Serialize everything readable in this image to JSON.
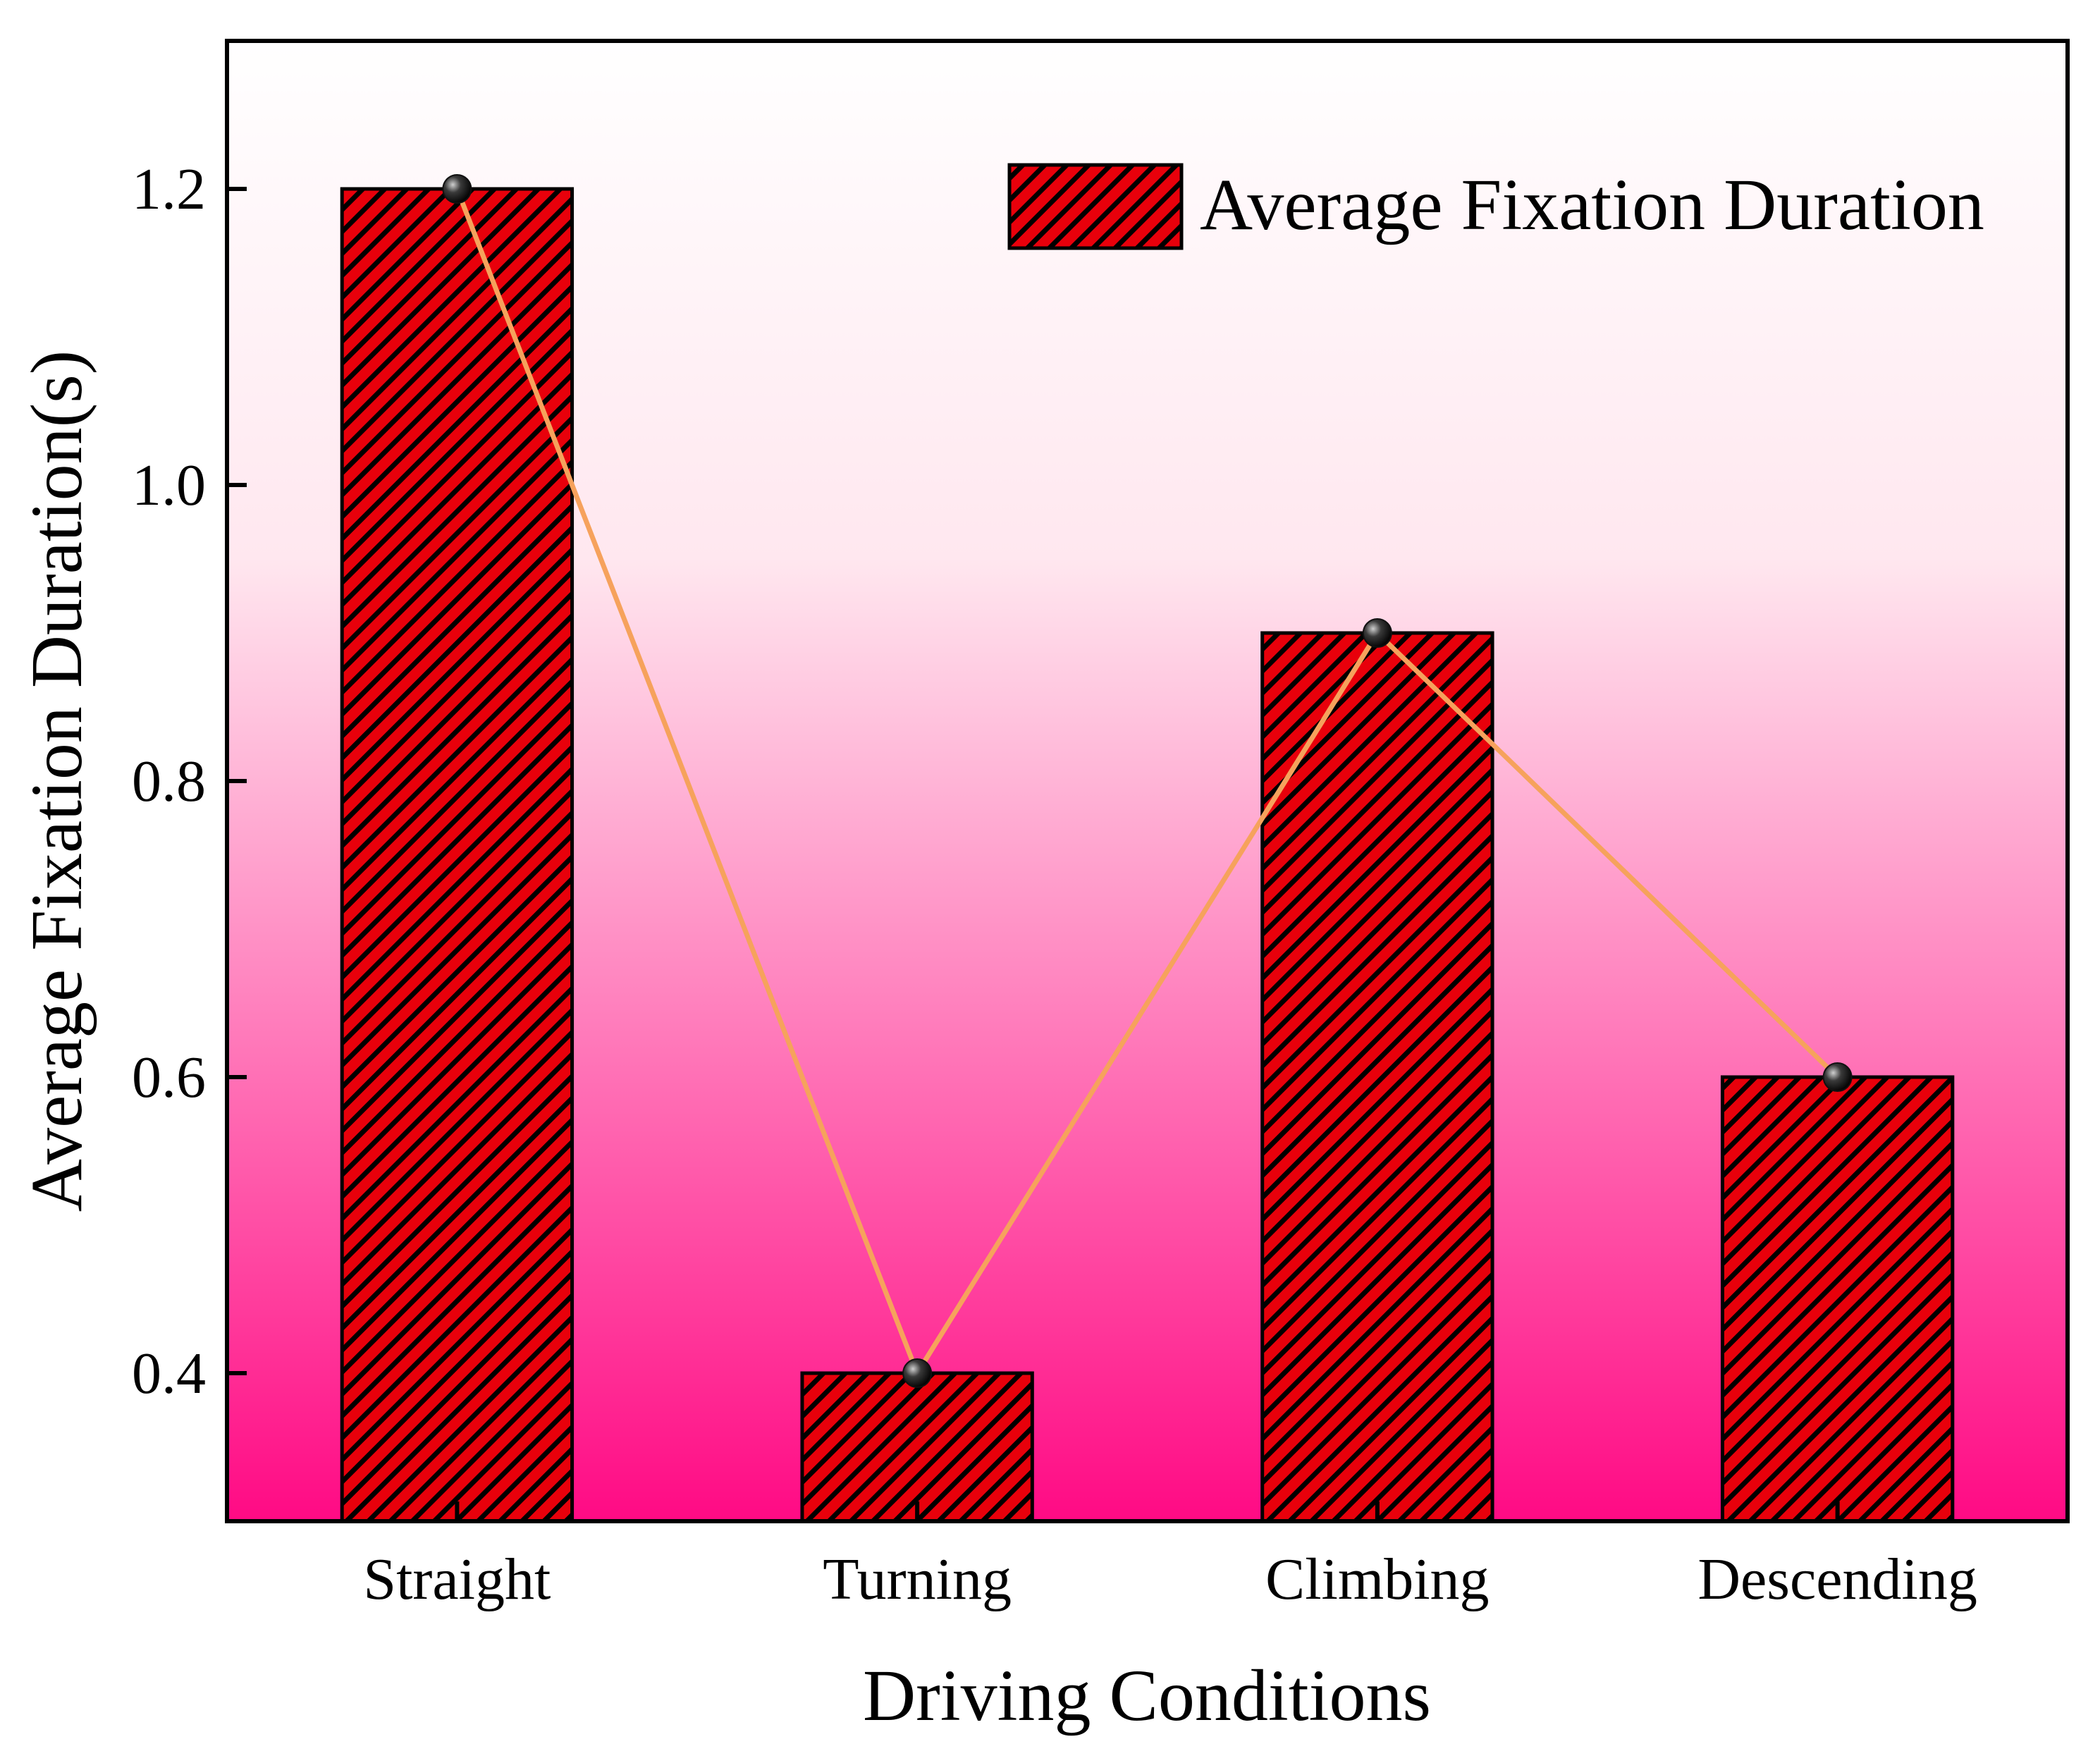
{
  "chart_data": {
    "type": "bar",
    "title": "",
    "categories": [
      "Straight",
      "Turning",
      "Climbing",
      "Descending"
    ],
    "series": [
      {
        "name": "Average Fixation Duration",
        "values": [
          1.2,
          0.4,
          0.9,
          0.6
        ]
      }
    ],
    "line_overlay": {
      "values": [
        1.2,
        0.4,
        0.9,
        0.6
      ]
    },
    "xlabel": "Driving Conditions",
    "ylabel": "Average Fixation Duration(s)",
    "ylim": [
      0.3,
      1.3
    ],
    "yticks": [
      "0.4",
      "0.6",
      "0.8",
      "1.0",
      "1.2"
    ],
    "legend": {
      "label": "Average Fixation Duration",
      "placement": "top-right"
    },
    "colors": {
      "bar_fill": "#e8000b",
      "hatch": "#000000",
      "line": "#f6a25c",
      "marker": "#111111",
      "bg_top": "#ffffff",
      "bg_bottom": "#ff0a84"
    }
  }
}
